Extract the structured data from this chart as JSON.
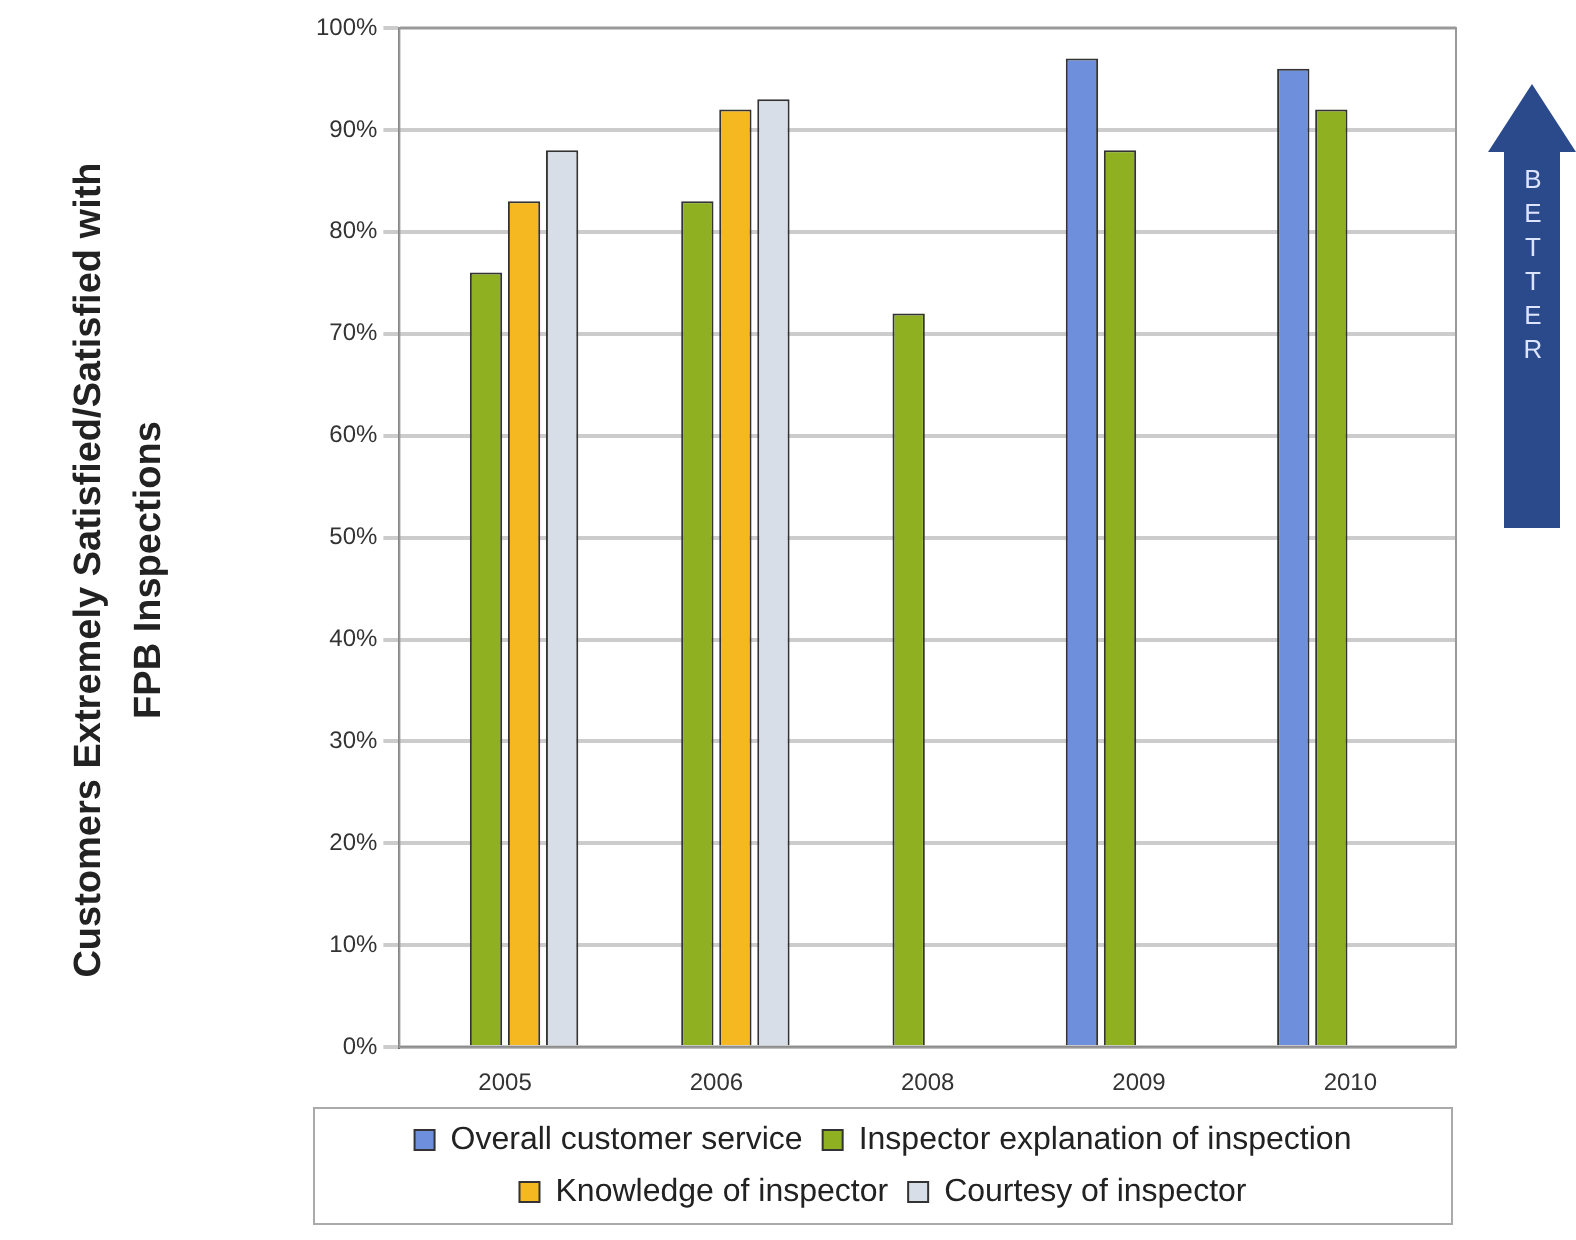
{
  "chart_data": {
    "type": "bar",
    "ylabel": "Customers Extremely Satisfied/Satisfied with FPB Inspections",
    "categories": [
      "2005",
      "2006",
      "2008",
      "2009",
      "2010"
    ],
    "series": [
      {
        "name": "Overall customer service",
        "color": "#6d8fdc",
        "values": [
          null,
          null,
          null,
          97,
          96
        ]
      },
      {
        "name": "Inspector explanation of inspection",
        "color": "#8fb020",
        "values": [
          76,
          83,
          72,
          88,
          92
        ]
      },
      {
        "name": "Knowledge of inspector",
        "color": "#f5b820",
        "values": [
          83,
          92,
          null,
          null,
          null
        ]
      },
      {
        "name": "Courtesy of inspector",
        "color": "#d8dee8",
        "values": [
          88,
          93,
          null,
          null,
          null
        ]
      }
    ],
    "ylim": [
      0,
      100
    ],
    "yticks": [
      {
        "value": 0,
        "label": "0%"
      },
      {
        "value": 10,
        "label": "10%"
      },
      {
        "value": 20,
        "label": "20%"
      },
      {
        "value": 30,
        "label": "30%"
      },
      {
        "value": 40,
        "label": "40%"
      },
      {
        "value": 50,
        "label": "50%"
      },
      {
        "value": 60,
        "label": "60%"
      },
      {
        "value": 70,
        "label": "70%"
      },
      {
        "value": 80,
        "label": "80%"
      },
      {
        "value": 90,
        "label": "90%"
      },
      {
        "value": 100,
        "label": "100%"
      }
    ],
    "grid": "y",
    "legend": "bottom",
    "annotations": [
      "BETTER"
    ]
  }
}
